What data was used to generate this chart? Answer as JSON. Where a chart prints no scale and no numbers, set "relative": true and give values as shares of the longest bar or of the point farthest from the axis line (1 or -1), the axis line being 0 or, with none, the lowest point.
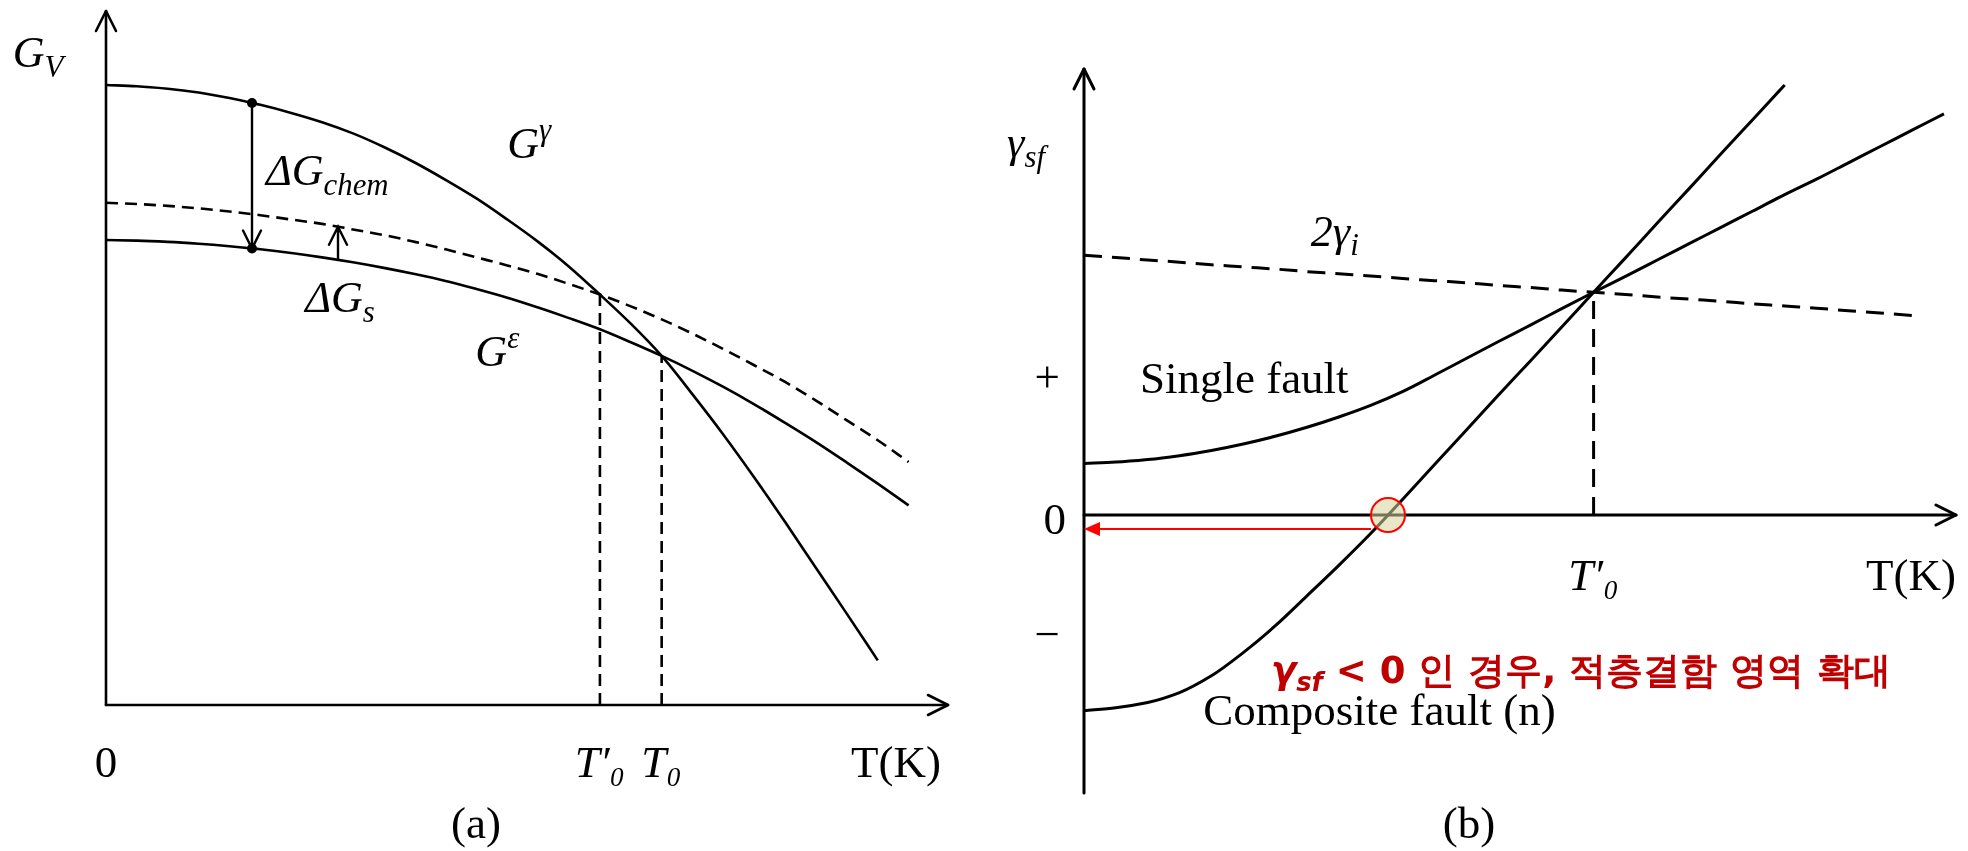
{
  "chart_data": [
    {
      "type": "line",
      "relative": true,
      "xlabel": "T(K)",
      "ylabel": "G$_{V}$",
      "categories": [
        "0",
        null,
        null,
        null,
        null,
        null,
        null,
        null,
        null,
        null,
        null,
        null,
        null,
        null,
        null,
        null,
        "T′₀",
        null,
        "T₀",
        null,
        null,
        null,
        null,
        null,
        null,
        null,
        null
      ],
      "series": [
        {
          "name": "G$^{γ}$",
          "color": "#000000",
          "values": [
            1.0,
            0.998,
            0.994,
            0.988,
            0.979,
            0.968,
            0.955,
            0.94,
            0.922,
            0.9,
            0.875,
            0.847,
            0.817,
            0.783,
            0.747,
            0.707,
            0.662,
            0.615,
            0.563,
            0.501,
            0.436,
            0.367,
            0.295,
            0.221,
            0.147,
            0.072,
            null
          ]
        },
        {
          "color": "#000000",
          "line_style": "dashed",
          "values": [
            0.81,
            0.808,
            0.805,
            0.801,
            0.796,
            0.79,
            0.783,
            0.776,
            0.767,
            0.758,
            0.747,
            0.735,
            0.722,
            0.709,
            0.695,
            0.679,
            0.662,
            0.643,
            0.622,
            0.599,
            0.574,
            0.548,
            0.521,
            0.491,
            0.459,
            0.427,
            0.392
          ]
        },
        {
          "name": "G$^{ε}$",
          "color": "#000000",
          "values": [
            0.75,
            0.749,
            0.747,
            0.744,
            0.74,
            0.735,
            0.729,
            0.722,
            0.714,
            0.705,
            0.695,
            0.684,
            0.671,
            0.657,
            0.641,
            0.624,
            0.606,
            0.585,
            0.563,
            0.539,
            0.513,
            0.485,
            0.455,
            0.424,
            0.391,
            0.357,
            0.322
          ]
        }
      ],
      "ref_lines": [
        {
          "axis": "x",
          "value": "T′₀",
          "line_style": "dashed"
        },
        {
          "axis": "x",
          "value": "T₀",
          "line_style": "dashed"
        }
      ],
      "annotations": [
        "ΔG$_{chem}$",
        "ΔG$_{s}$",
        "(a)"
      ]
    },
    {
      "type": "line",
      "relative": true,
      "xlabel": "T(K)",
      "ylabel": "γ$_{sf}$",
      "categories": [
        null,
        null,
        null,
        null,
        null,
        null,
        null,
        null,
        null,
        null,
        null,
        null,
        null,
        null,
        null,
        null,
        null,
        null,
        null,
        null,
        null,
        null,
        null,
        null,
        null,
        null,
        null,
        null
      ],
      "series": [
        {
          "name": "2γ$_{i}$",
          "color": "#000000",
          "line_style": "dashed",
          "values": [
            0.604,
            0.599,
            0.593,
            0.588,
            0.582,
            0.577,
            0.572,
            0.566,
            0.561,
            0.556,
            0.55,
            0.545,
            0.54,
            0.534,
            0.529,
            0.523,
            0.518,
            0.513,
            0.507,
            0.502,
            0.497,
            0.491,
            0.486,
            0.481,
            0.475,
            0.47,
            0.464,
            null
          ]
        },
        {
          "name": "Single fault",
          "color": "#000000",
          "values": [
            0.12,
            0.123,
            0.129,
            0.138,
            0.15,
            0.165,
            0.183,
            0.204,
            0.228,
            0.255,
            0.287,
            0.325,
            0.364,
            0.403,
            0.441,
            0.48,
            0.518,
            0.555,
            0.593,
            0.631,
            0.669,
            0.707,
            0.745,
            0.781,
            0.819,
            0.857,
            0.895,
            0.933
          ]
        },
        {
          "name": "Composite fault (n)",
          "color": "#000000",
          "values": [
            -0.455,
            -0.448,
            -0.436,
            -0.413,
            -0.374,
            -0.32,
            -0.258,
            -0.188,
            -0.117,
            -0.043,
            0.036,
            0.117,
            0.197,
            0.278,
            0.357,
            0.437,
            0.518,
            0.598,
            0.679,
            0.759,
            0.84,
            0.92,
            1.0,
            null,
            null,
            null,
            null,
            null
          ]
        }
      ],
      "ref_lines": [
        {
          "axis": "x",
          "label": "T′₀",
          "line_style": "dashed"
        }
      ],
      "annotations": [
        "*γ*$_{sf}$ < 0 인 경우, 적층결함 영역 확대",
        "+",
        "0",
        "−",
        "(b)"
      ]
    }
  ]
}
